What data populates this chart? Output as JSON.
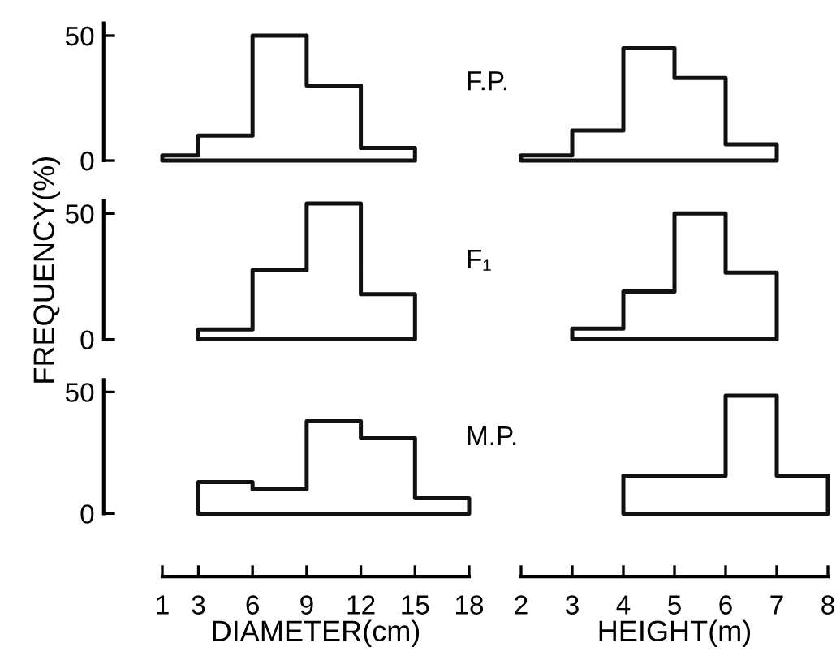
{
  "chart_data": [
    {
      "type": "histogram",
      "bins": [
        1,
        3,
        6,
        9,
        12,
        15
      ],
      "values": [
        2,
        10,
        50,
        30,
        5
      ],
      "color": "#111111",
      "xlim": [
        1,
        18
      ],
      "xticks": [
        1,
        3,
        6,
        9,
        12,
        15,
        18
      ],
      "ylim": [
        0,
        55
      ],
      "yticks": [
        0,
        50
      ],
      "tick_labels": "y"
    },
    {
      "type": "histogram",
      "title": "F.P.",
      "bins": [
        2,
        3,
        4,
        5,
        6,
        7
      ],
      "values": [
        2,
        12,
        45,
        33,
        6.5
      ],
      "color": "#111111",
      "xlim": [
        2,
        8
      ],
      "xticks": [
        2,
        3,
        4,
        5,
        6,
        7,
        8
      ],
      "ylim": [
        0,
        50
      ],
      "yticks": [
        0,
        50
      ],
      "tick_labels": false
    },
    {
      "type": "histogram",
      "ylabel": "FREQUENCY(%)",
      "bins": [
        3,
        6,
        9,
        12,
        15
      ],
      "values": [
        4,
        27.5,
        54,
        18
      ],
      "color": "#111111",
      "xlim": [
        1,
        18
      ],
      "xticks": [
        1,
        3,
        6,
        9,
        12,
        15,
        18
      ],
      "ylim": [
        0,
        55
      ],
      "yticks": [
        0,
        50
      ],
      "tick_labels": "y"
    },
    {
      "type": "histogram",
      "title": "F₁",
      "bins": [
        3,
        4,
        5,
        6,
        7
      ],
      "values": [
        4.3,
        19,
        50,
        26.5
      ],
      "color": "#111111",
      "xlim": [
        2,
        8
      ],
      "xticks": [
        2,
        3,
        4,
        5,
        6,
        7,
        8
      ],
      "ylim": [
        0,
        50
      ],
      "yticks": [
        0,
        50
      ],
      "tick_labels": false
    },
    {
      "type": "histogram",
      "xlabel": "DIAMETER(cm)",
      "bins": [
        3,
        6,
        9,
        12,
        15,
        18
      ],
      "values": [
        13,
        10,
        38,
        31,
        6.3
      ],
      "color": "#111111",
      "xlim": [
        1,
        18
      ],
      "xticks": [
        1,
        3,
        6,
        9,
        12,
        15,
        18
      ],
      "ylim": [
        0,
        55
      ],
      "yticks": [
        0,
        50
      ]
    },
    {
      "type": "histogram",
      "title": "M.P.",
      "xlabel": "HEIGHT(m)",
      "bins": [
        4,
        6,
        7,
        8
      ],
      "values": [
        15.6,
        48.5,
        15.6
      ],
      "color": "#111111",
      "xlim": [
        2,
        8
      ],
      "xticks": [
        2,
        3,
        4,
        5,
        6,
        7,
        8
      ],
      "ylim": [
        0,
        50
      ],
      "yticks": [
        0,
        50
      ],
      "tick_labels": "x"
    }
  ]
}
